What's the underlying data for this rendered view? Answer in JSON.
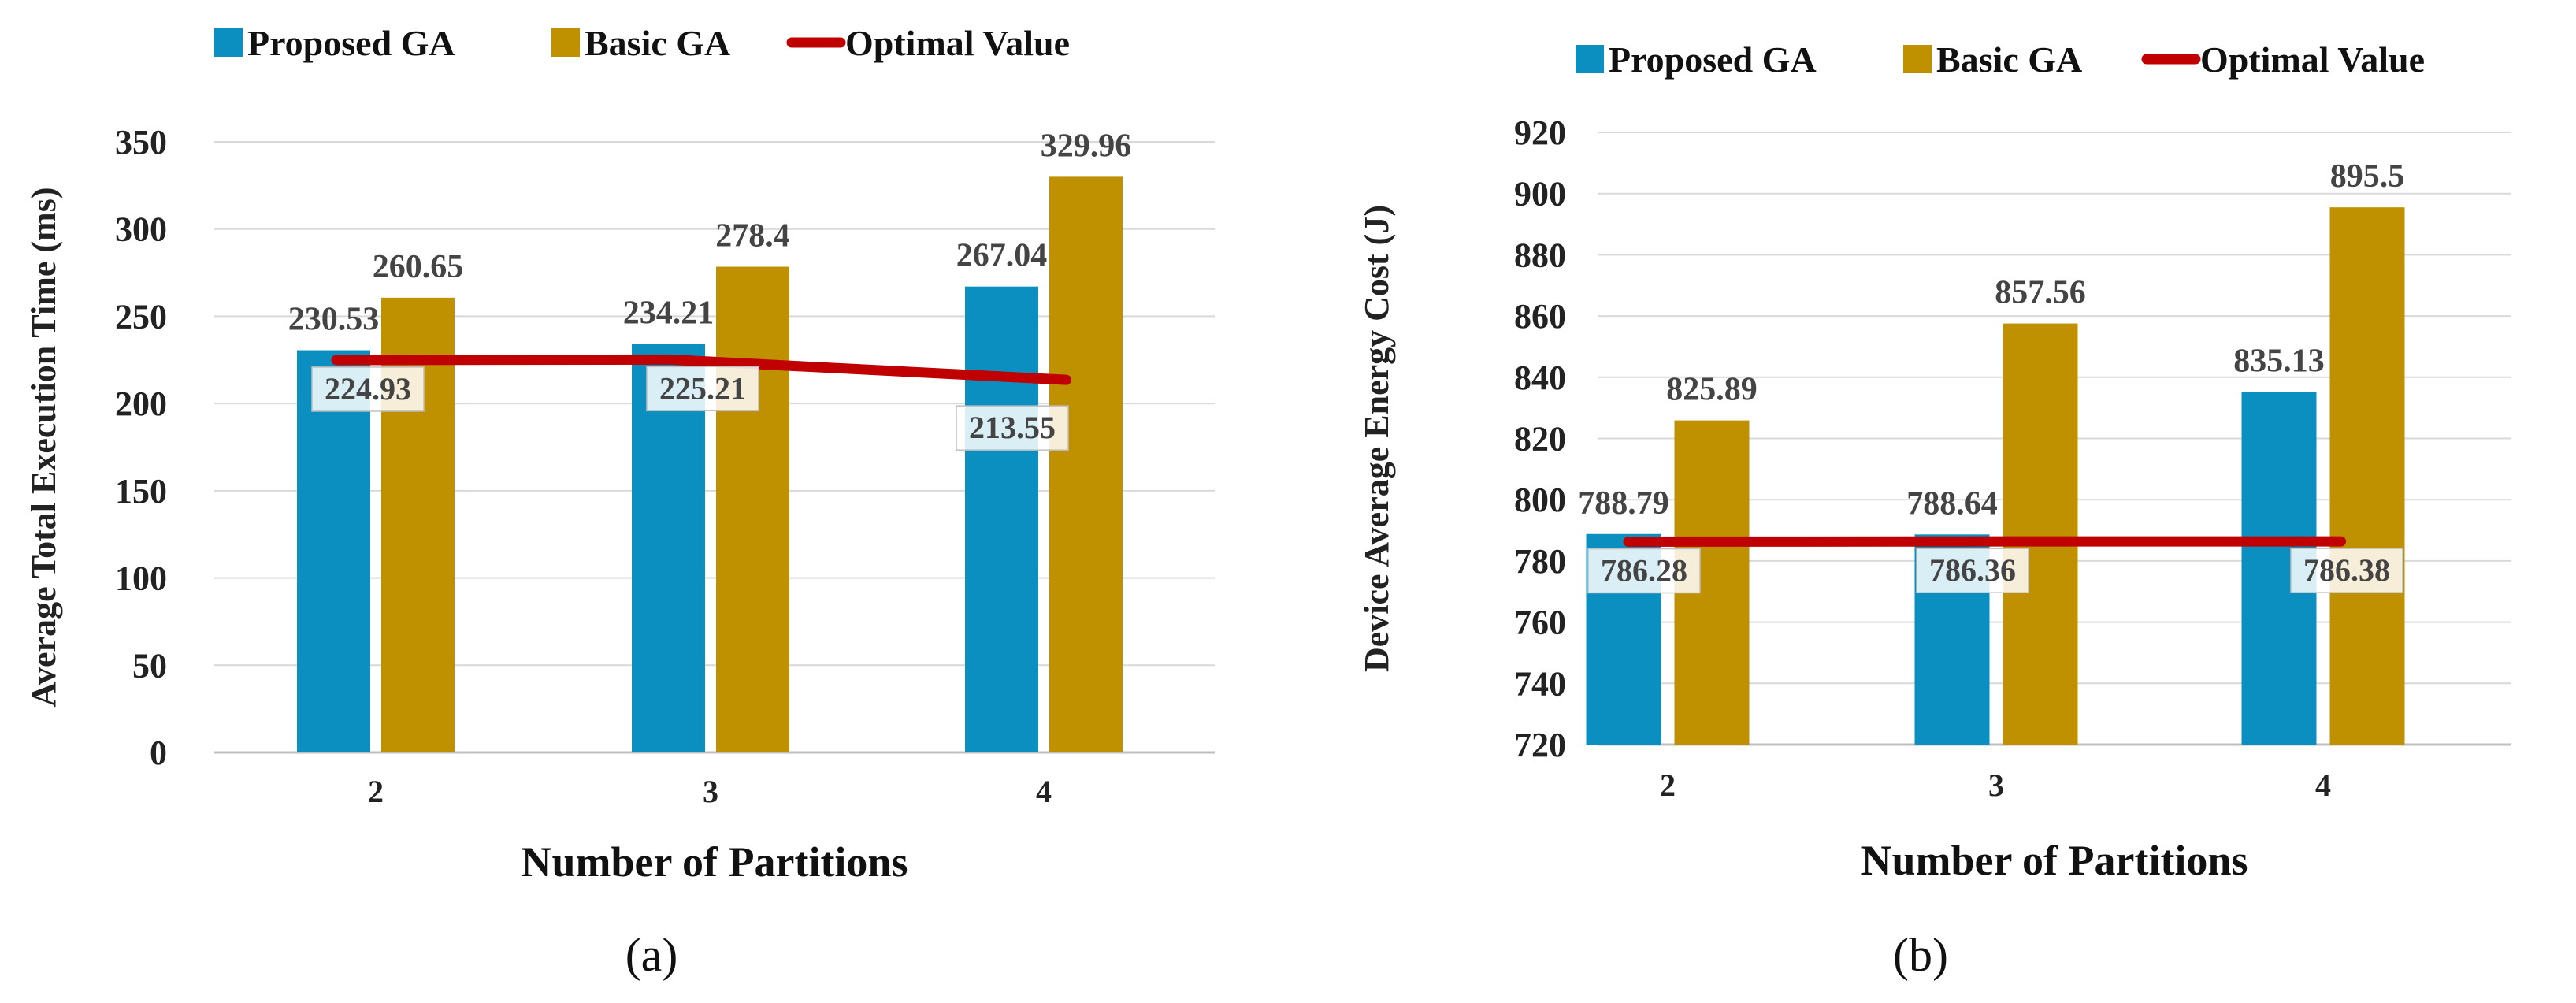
{
  "chart_data": [
    {
      "type": "bar",
      "panel_label": "(a)",
      "categories": [
        "2",
        "3",
        "4"
      ],
      "series": [
        {
          "name": "Proposed GA",
          "color": "#0a8fc0",
          "values": [
            230.53,
            234.21,
            267.04
          ],
          "labels": [
            "230.53",
            "234.21",
            "267.04"
          ]
        },
        {
          "name": "Basic GA",
          "color": "#bf9000",
          "values": [
            260.65,
            278.4,
            329.96
          ],
          "labels": [
            "260.65",
            "278.4",
            "329.96"
          ]
        },
        {
          "name": "Optimal Value",
          "type": "line",
          "color": "#c00000",
          "values": [
            224.93,
            225.21,
            213.55
          ],
          "labels": [
            "224.93",
            "225.21",
            "213.55"
          ]
        }
      ],
      "xlabel": "Number of Partitions",
      "ylabel": "Average Total Execution Time (ms)",
      "ylim": [
        0,
        350
      ],
      "yticks": [
        "0",
        "50",
        "100",
        "150",
        "200",
        "250",
        "300",
        "350"
      ],
      "grid": true,
      "legend": "top"
    },
    {
      "type": "bar",
      "panel_label": "(b)",
      "categories": [
        "2",
        "3",
        "4"
      ],
      "series": [
        {
          "name": "Proposed GA",
          "color": "#0a8fc0",
          "values": [
            788.79,
            788.64,
            835.13
          ],
          "labels": [
            "788.79",
            "788.64",
            "835.13"
          ]
        },
        {
          "name": "Basic GA",
          "color": "#bf9000",
          "values": [
            825.89,
            857.56,
            895.5
          ],
          "labels": [
            "825.89",
            "857.56",
            "895.5"
          ]
        },
        {
          "name": "Optimal Value",
          "type": "line",
          "color": "#c00000",
          "values": [
            786.28,
            786.36,
            786.38
          ],
          "labels": [
            "786.28",
            "786.36",
            "786.38"
          ]
        }
      ],
      "xlabel": "Number of Partitions",
      "ylabel": "Device Average Energy Cost (J)",
      "ylim": [
        720,
        920
      ],
      "yticks": [
        "720",
        "740",
        "760",
        "780",
        "800",
        "820",
        "840",
        "860",
        "880",
        "900",
        "920"
      ],
      "grid": true,
      "legend": "top"
    }
  ]
}
